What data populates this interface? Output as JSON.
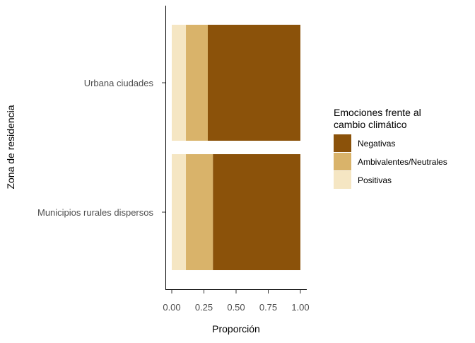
{
  "chart_data": {
    "type": "bar",
    "orientation": "horizontal",
    "stacked": true,
    "title": "",
    "xlabel": "Proporción",
    "ylabel": "Zona de residencia",
    "xlim": [
      0,
      1
    ],
    "xticks": [
      "0.00",
      "0.25",
      "0.50",
      "0.75",
      "1.00"
    ],
    "categories": [
      "Urbana ciudades",
      "Municipios rurales dispersos"
    ],
    "series": [
      {
        "name": "Positivas",
        "color": "#f5e6c3",
        "values": [
          0.11,
          0.11
        ]
      },
      {
        "name": "Ambivalentes/Neutrales",
        "color": "#d9b36a",
        "values": [
          0.17,
          0.21
        ]
      },
      {
        "name": "Negativas",
        "color": "#8b520a",
        "values": [
          0.72,
          0.68
        ]
      }
    ],
    "legend": {
      "title_lines": [
        "Emociones frente al",
        "cambio climático"
      ],
      "placement": "right",
      "order": [
        "Negativas",
        "Ambivalentes/Neutrales",
        "Positivas"
      ]
    },
    "grid": false
  }
}
